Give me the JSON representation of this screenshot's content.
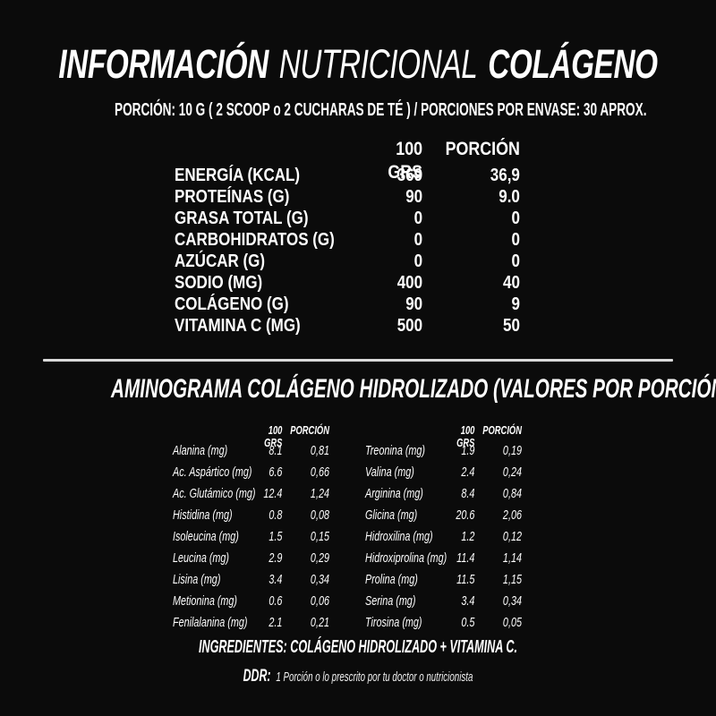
{
  "colors": {
    "background": "#0b0b0b",
    "text": "#ffffff",
    "divider": "#d9d9d9"
  },
  "title": {
    "part1": "INFORMACIÓN",
    "part2": "NUTRICIONAL",
    "part3": "COLÁGENO"
  },
  "subtitle": "PORCIÓN: 10 G ( 2 SCOOP o 2 CUCHARAS DE TÉ ) / PORCIONES POR ENVASE: 30 APROX.",
  "nutrition_table": {
    "col_100g": "100 GRS",
    "col_portion": "PORCIÓN",
    "rows": [
      {
        "label": "ENERGÍA (KCAL)",
        "g100": "369",
        "portion": "36,9"
      },
      {
        "label": "PROTEÍNAS (G)",
        "g100": "90",
        "portion": "9.0"
      },
      {
        "label": "GRASA TOTAL (G)",
        "g100": "0",
        "portion": "0"
      },
      {
        "label": "CARBOHIDRATOS (G)",
        "g100": "0",
        "portion": "0"
      },
      {
        "label": "AZÚCAR (G)",
        "g100": "0",
        "portion": "0"
      },
      {
        "label": "SODIO (MG)",
        "g100": "400",
        "portion": "40"
      },
      {
        "label": "COLÁGENO (G)",
        "g100": "90",
        "portion": "9"
      },
      {
        "label": "VITAMINA C (MG)",
        "g100": "500",
        "portion": "50"
      }
    ]
  },
  "aminogram": {
    "heading": "AMINOGRAMA COLÁGENO HIDROLIZADO (VALORES POR PORCIÓN)",
    "col_100g": "100 GRS",
    "col_portion": "PORCIÓN",
    "left_rows": [
      {
        "name": "Alanina (mg)",
        "g100": "8.1",
        "portion": "0,81"
      },
      {
        "name": "Ac. Aspártico (mg)",
        "g100": "6.6",
        "portion": "0,66"
      },
      {
        "name": "Ac. Glutámico (mg)",
        "g100": "12.4",
        "portion": "1,24"
      },
      {
        "name": "Histidina (mg)",
        "g100": "0.8",
        "portion": "0,08"
      },
      {
        "name": "Isoleucina (mg)",
        "g100": "1.5",
        "portion": "0,15"
      },
      {
        "name": "Leucina (mg)",
        "g100": "2.9",
        "portion": "0,29"
      },
      {
        "name": "Lisina (mg)",
        "g100": "3.4",
        "portion": "0,34"
      },
      {
        "name": "Metionina (mg)",
        "g100": "0.6",
        "portion": "0,06"
      },
      {
        "name": "Fenilalanina (mg)",
        "g100": "2.1",
        "portion": "0,21"
      }
    ],
    "right_rows": [
      {
        "name": "Treonina (mg)",
        "g100": "1.9",
        "portion": "0,19"
      },
      {
        "name": "Valina (mg)",
        "g100": "2.4",
        "portion": "0,24"
      },
      {
        "name": "Arginina (mg)",
        "g100": "8.4",
        "portion": "0,84"
      },
      {
        "name": "Glicina (mg)",
        "g100": "20.6",
        "portion": "2,06"
      },
      {
        "name": "Hidroxilina (mg)",
        "g100": "1.2",
        "portion": "0,12"
      },
      {
        "name": "Hidroxiprolina (mg)",
        "g100": "11.4",
        "portion": "1,14"
      },
      {
        "name": "Prolina (mg)",
        "g100": "11.5",
        "portion": "1,15"
      },
      {
        "name": "Serina (mg)",
        "g100": "3.4",
        "portion": "0,34"
      },
      {
        "name": "Tirosina (mg)",
        "g100": "0.5",
        "portion": "0,05"
      }
    ]
  },
  "footer": {
    "ingredients": "INGREDIENTES: COLÁGENO HIDROLIZADO + VITAMINA C.",
    "ddr_label": "DDR:",
    "ddr_text": "1 Porción o lo prescrito por tu doctor o nutricionista"
  }
}
